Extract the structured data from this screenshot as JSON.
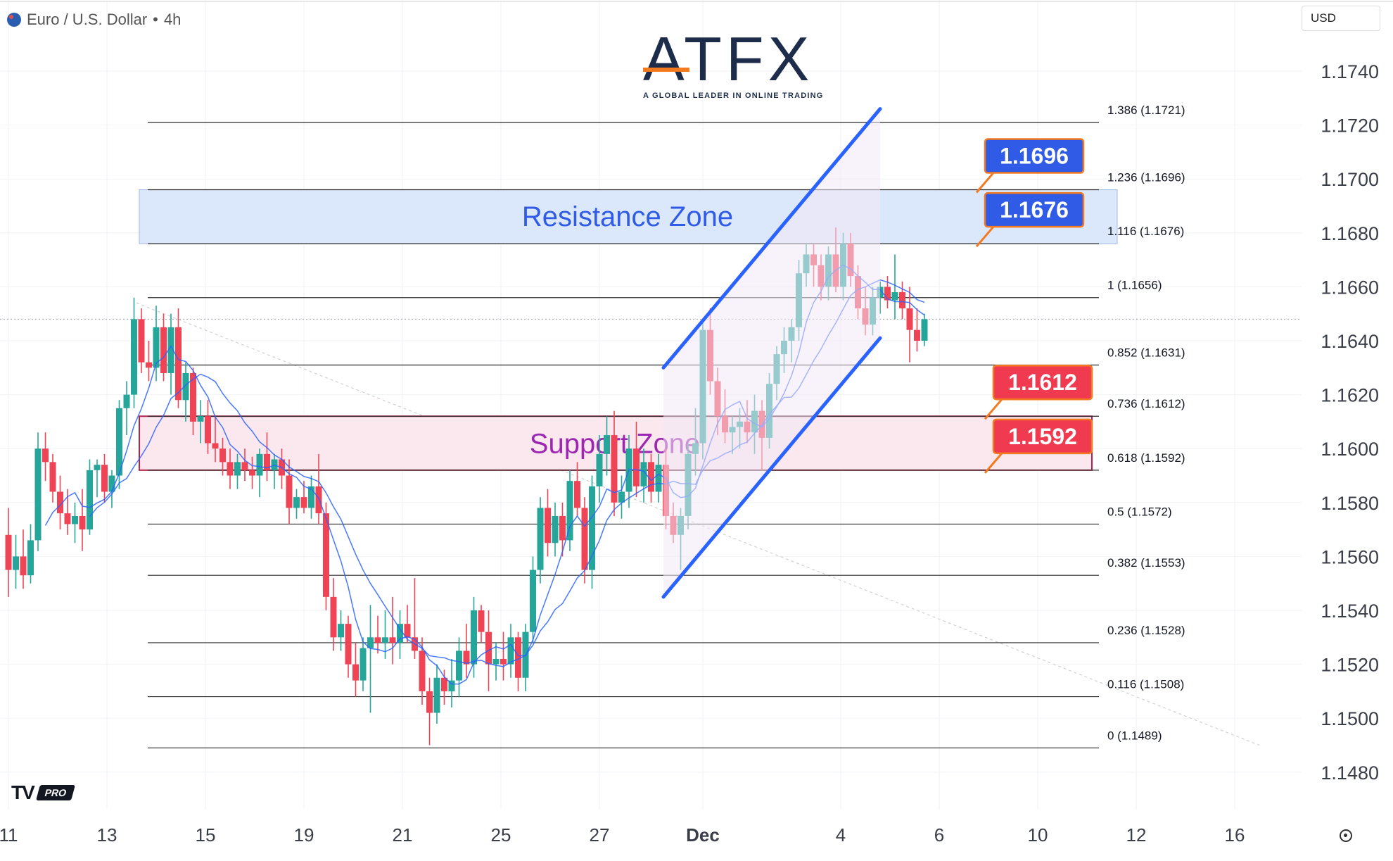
{
  "header": {
    "title": "Euro / U.S. Dollar",
    "interval": "4h",
    "currency": "USD"
  },
  "logo": {
    "name": "ATFX",
    "tagline": "A GLOBAL LEADER IN ONLINE TRADING"
  },
  "watermark": {
    "name": "TV",
    "badge": "PRO"
  },
  "colors": {
    "up": "#26a69a",
    "down": "#ef4455",
    "channel": "#2962ff",
    "resistance_fill": "#dbe8fb",
    "support_fill": "#fbe8ee",
    "resistance_label": "#2f5be6",
    "support_label": "#ef3a50",
    "support_text": "#9c27b0",
    "resistance_text": "#2f5be6"
  },
  "chart_data": {
    "type": "candlestick",
    "title": "",
    "ylim": [
      1.1472,
      1.1758
    ],
    "x_ticks": [
      {
        "label": "11",
        "day": 11
      },
      {
        "label": "13",
        "day": 13
      },
      {
        "label": "15",
        "day": 15
      },
      {
        "label": "19",
        "day": 17
      },
      {
        "label": "21",
        "day": 19
      },
      {
        "label": "25",
        "day": 21
      },
      {
        "label": "27",
        "day": 23
      },
      {
        "label": "Dec",
        "day": 25.1
      },
      {
        "label": "4",
        "day": 27.9
      },
      {
        "label": "6",
        "day": 29.9
      },
      {
        "label": "10",
        "day": 31.9
      },
      {
        "label": "12",
        "day": 33.9
      },
      {
        "label": "16",
        "day": 35.9
      }
    ],
    "y_ticks": [
      "1.1740",
      "1.1720",
      "1.1700",
      "1.1680",
      "1.1660",
      "1.1640",
      "1.1620",
      "1.1600",
      "1.1580",
      "1.1560",
      "1.1540",
      "1.1520",
      "1.1500",
      "1.1480"
    ],
    "fib_levels": [
      {
        "label": "1.386 (1.1721)",
        "price": 1.1721
      },
      {
        "label": "1.236 (1.1696)",
        "price": 1.1696
      },
      {
        "label": "1.116 (1.1676)",
        "price": 1.1676
      },
      {
        "label": "1 (1.1656)",
        "price": 1.1656
      },
      {
        "label": "0.852 (1.1631)",
        "price": 1.1631
      },
      {
        "label": "0.736 (1.1612)",
        "price": 1.1612
      },
      {
        "label": "0.618 (1.1592)",
        "price": 1.1592
      },
      {
        "label": "0.5 (1.1572)",
        "price": 1.1572
      },
      {
        "label": "0.382 (1.1553)",
        "price": 1.1553
      },
      {
        "label": "0.236 (1.1528)",
        "price": 1.1528
      },
      {
        "label": "0.116 (1.1508)",
        "price": 1.1508
      },
      {
        "label": "0 (1.1489)",
        "price": 1.1489
      }
    ],
    "zones": [
      {
        "name": "Resistance Zone",
        "top": 1.1696,
        "bottom": 1.1676,
        "kind": "resistance"
      },
      {
        "name": "Support Zone",
        "top": 1.1612,
        "bottom": 1.1592,
        "kind": "support"
      }
    ],
    "callouts": [
      {
        "text": "1.1696",
        "price": 1.1696,
        "kind": "resistance"
      },
      {
        "text": "1.1676",
        "price": 1.1676,
        "kind": "resistance"
      },
      {
        "text": "1.1612",
        "price": 1.1612,
        "kind": "support"
      },
      {
        "text": "1.1592",
        "price": 1.1592,
        "kind": "support"
      }
    ],
    "channel": {
      "upper": [
        {
          "day": 24.3,
          "price": 1.163
        },
        {
          "day": 28.7,
          "price": 1.1726
        }
      ],
      "lower": [
        {
          "day": 24.3,
          "price": 1.1545
        },
        {
          "day": 28.7,
          "price": 1.1641
        }
      ]
    },
    "candles": [
      {
        "day": 11.0,
        "o": 1.1568,
        "h": 1.1578,
        "l": 1.1545,
        "c": 1.1555
      },
      {
        "day": 11.15,
        "o": 1.1555,
        "h": 1.1568,
        "l": 1.1548,
        "c": 1.156
      },
      {
        "day": 11.3,
        "o": 1.156,
        "h": 1.157,
        "l": 1.1548,
        "c": 1.1553
      },
      {
        "day": 11.45,
        "o": 1.1553,
        "h": 1.1572,
        "l": 1.155,
        "c": 1.1566
      },
      {
        "day": 11.6,
        "o": 1.1566,
        "h": 1.1606,
        "l": 1.1562,
        "c": 1.16
      },
      {
        "day": 11.75,
        "o": 1.16,
        "h": 1.1606,
        "l": 1.1588,
        "c": 1.1595
      },
      {
        "day": 11.9,
        "o": 1.1595,
        "h": 1.1598,
        "l": 1.158,
        "c": 1.1584
      },
      {
        "day": 12.05,
        "o": 1.1584,
        "h": 1.159,
        "l": 1.157,
        "c": 1.1576
      },
      {
        "day": 12.2,
        "o": 1.1576,
        "h": 1.1585,
        "l": 1.1568,
        "c": 1.1572
      },
      {
        "day": 12.35,
        "o": 1.1572,
        "h": 1.158,
        "l": 1.1565,
        "c": 1.1575
      },
      {
        "day": 12.5,
        "o": 1.1575,
        "h": 1.1585,
        "l": 1.1562,
        "c": 1.157
      },
      {
        "day": 12.65,
        "o": 1.157,
        "h": 1.1596,
        "l": 1.1568,
        "c": 1.1592
      },
      {
        "day": 12.8,
        "o": 1.1592,
        "h": 1.1596,
        "l": 1.1582,
        "c": 1.1594
      },
      {
        "day": 12.95,
        "o": 1.1594,
        "h": 1.1598,
        "l": 1.158,
        "c": 1.1584
      },
      {
        "day": 13.1,
        "o": 1.1584,
        "h": 1.1592,
        "l": 1.1578,
        "c": 1.159
      },
      {
        "day": 13.25,
        "o": 1.159,
        "h": 1.1618,
        "l": 1.1585,
        "c": 1.1615
      },
      {
        "day": 13.4,
        "o": 1.1615,
        "h": 1.1625,
        "l": 1.1605,
        "c": 1.162
      },
      {
        "day": 13.55,
        "o": 1.162,
        "h": 1.1656,
        "l": 1.1615,
        "c": 1.1648
      },
      {
        "day": 13.7,
        "o": 1.1648,
        "h": 1.1652,
        "l": 1.1628,
        "c": 1.1632
      },
      {
        "day": 13.85,
        "o": 1.1632,
        "h": 1.164,
        "l": 1.1625,
        "c": 1.163
      },
      {
        "day": 14.0,
        "o": 1.163,
        "h": 1.1653,
        "l": 1.1625,
        "c": 1.1645
      },
      {
        "day": 14.15,
        "o": 1.1645,
        "h": 1.165,
        "l": 1.1625,
        "c": 1.1628
      },
      {
        "day": 14.3,
        "o": 1.1628,
        "h": 1.165,
        "l": 1.162,
        "c": 1.1645
      },
      {
        "day": 14.45,
        "o": 1.1645,
        "h": 1.1652,
        "l": 1.1615,
        "c": 1.1618
      },
      {
        "day": 14.6,
        "o": 1.1618,
        "h": 1.1632,
        "l": 1.161,
        "c": 1.1628
      },
      {
        "day": 14.75,
        "o": 1.1628,
        "h": 1.163,
        "l": 1.1605,
        "c": 1.161
      },
      {
        "day": 14.9,
        "o": 1.161,
        "h": 1.1618,
        "l": 1.1602,
        "c": 1.1612
      },
      {
        "day": 15.05,
        "o": 1.1612,
        "h": 1.1618,
        "l": 1.1598,
        "c": 1.1602
      },
      {
        "day": 15.2,
        "o": 1.1602,
        "h": 1.1612,
        "l": 1.1595,
        "c": 1.16
      },
      {
        "day": 15.35,
        "o": 1.16,
        "h": 1.1604,
        "l": 1.159,
        "c": 1.1595
      },
      {
        "day": 15.5,
        "o": 1.1595,
        "h": 1.16,
        "l": 1.1585,
        "c": 1.159
      },
      {
        "day": 15.65,
        "o": 1.159,
        "h": 1.1598,
        "l": 1.1585,
        "c": 1.1595
      },
      {
        "day": 15.8,
        "o": 1.1595,
        "h": 1.16,
        "l": 1.1588,
        "c": 1.1592
      },
      {
        "day": 15.95,
        "o": 1.1592,
        "h": 1.1597,
        "l": 1.1585,
        "c": 1.159
      },
      {
        "day": 16.1,
        "o": 1.159,
        "h": 1.16,
        "l": 1.1582,
        "c": 1.1598
      },
      {
        "day": 16.25,
        "o": 1.1598,
        "h": 1.1606,
        "l": 1.1588,
        "c": 1.1592
      },
      {
        "day": 16.4,
        "o": 1.1592,
        "h": 1.1598,
        "l": 1.1585,
        "c": 1.1596
      },
      {
        "day": 16.55,
        "o": 1.1596,
        "h": 1.16,
        "l": 1.1585,
        "c": 1.159
      },
      {
        "day": 16.7,
        "o": 1.159,
        "h": 1.1596,
        "l": 1.1572,
        "c": 1.1578
      },
      {
        "day": 16.85,
        "o": 1.1578,
        "h": 1.1585,
        "l": 1.1574,
        "c": 1.1582
      },
      {
        "day": 17.0,
        "o": 1.1582,
        "h": 1.1588,
        "l": 1.1576,
        "c": 1.1578
      },
      {
        "day": 17.15,
        "o": 1.1578,
        "h": 1.159,
        "l": 1.1574,
        "c": 1.1586
      },
      {
        "day": 17.3,
        "o": 1.1586,
        "h": 1.1598,
        "l": 1.1572,
        "c": 1.1576
      },
      {
        "day": 17.45,
        "o": 1.1576,
        "h": 1.158,
        "l": 1.154,
        "c": 1.1545
      },
      {
        "day": 17.6,
        "o": 1.1545,
        "h": 1.1552,
        "l": 1.1525,
        "c": 1.153
      },
      {
        "day": 17.75,
        "o": 1.153,
        "h": 1.154,
        "l": 1.1525,
        "c": 1.1535
      },
      {
        "day": 17.9,
        "o": 1.1535,
        "h": 1.1538,
        "l": 1.1515,
        "c": 1.152
      },
      {
        "day": 18.05,
        "o": 1.152,
        "h": 1.1528,
        "l": 1.1508,
        "c": 1.1514
      },
      {
        "day": 18.2,
        "o": 1.1514,
        "h": 1.153,
        "l": 1.151,
        "c": 1.1526
      },
      {
        "day": 18.35,
        "o": 1.1526,
        "h": 1.1542,
        "l": 1.1502,
        "c": 1.153
      },
      {
        "day": 18.5,
        "o": 1.153,
        "h": 1.1538,
        "l": 1.1524,
        "c": 1.1528
      },
      {
        "day": 18.65,
        "o": 1.1528,
        "h": 1.154,
        "l": 1.1522,
        "c": 1.153
      },
      {
        "day": 18.8,
        "o": 1.153,
        "h": 1.1545,
        "l": 1.152,
        "c": 1.1528
      },
      {
        "day": 18.95,
        "o": 1.1528,
        "h": 1.154,
        "l": 1.1522,
        "c": 1.1535
      },
      {
        "day": 19.1,
        "o": 1.1535,
        "h": 1.1542,
        "l": 1.1528,
        "c": 1.153
      },
      {
        "day": 19.25,
        "o": 1.153,
        "h": 1.1552,
        "l": 1.1522,
        "c": 1.1525
      },
      {
        "day": 19.4,
        "o": 1.1525,
        "h": 1.153,
        "l": 1.1505,
        "c": 1.151
      },
      {
        "day": 19.55,
        "o": 1.151,
        "h": 1.1515,
        "l": 1.149,
        "c": 1.1502
      },
      {
        "day": 19.7,
        "o": 1.1502,
        "h": 1.152,
        "l": 1.1498,
        "c": 1.1515
      },
      {
        "day": 19.85,
        "o": 1.1515,
        "h": 1.1518,
        "l": 1.1505,
        "c": 1.151
      },
      {
        "day": 20.0,
        "o": 1.151,
        "h": 1.1522,
        "l": 1.1504,
        "c": 1.1514
      },
      {
        "day": 20.15,
        "o": 1.1514,
        "h": 1.153,
        "l": 1.1508,
        "c": 1.1525
      },
      {
        "day": 20.3,
        "o": 1.1525,
        "h": 1.1535,
        "l": 1.1515,
        "c": 1.152
      },
      {
        "day": 20.45,
        "o": 1.152,
        "h": 1.1545,
        "l": 1.1515,
        "c": 1.154
      },
      {
        "day": 20.6,
        "o": 1.154,
        "h": 1.1542,
        "l": 1.1528,
        "c": 1.1532
      },
      {
        "day": 20.75,
        "o": 1.1532,
        "h": 1.154,
        "l": 1.151,
        "c": 1.152
      },
      {
        "day": 20.9,
        "o": 1.152,
        "h": 1.1528,
        "l": 1.1514,
        "c": 1.1522
      },
      {
        "day": 21.05,
        "o": 1.1522,
        "h": 1.1532,
        "l": 1.1514,
        "c": 1.152
      },
      {
        "day": 21.2,
        "o": 1.152,
        "h": 1.1535,
        "l": 1.1515,
        "c": 1.153
      },
      {
        "day": 21.35,
        "o": 1.153,
        "h": 1.1532,
        "l": 1.151,
        "c": 1.1515
      },
      {
        "day": 21.5,
        "o": 1.1515,
        "h": 1.1535,
        "l": 1.151,
        "c": 1.1532
      },
      {
        "day": 21.65,
        "o": 1.1532,
        "h": 1.156,
        "l": 1.1528,
        "c": 1.1555
      },
      {
        "day": 21.8,
        "o": 1.1555,
        "h": 1.1582,
        "l": 1.155,
        "c": 1.1578
      },
      {
        "day": 21.95,
        "o": 1.1578,
        "h": 1.1585,
        "l": 1.156,
        "c": 1.1565
      },
      {
        "day": 22.1,
        "o": 1.1565,
        "h": 1.158,
        "l": 1.156,
        "c": 1.1575
      },
      {
        "day": 22.25,
        "o": 1.1575,
        "h": 1.158,
        "l": 1.156,
        "c": 1.1566
      },
      {
        "day": 22.4,
        "o": 1.1566,
        "h": 1.1592,
        "l": 1.1562,
        "c": 1.1588
      },
      {
        "day": 22.55,
        "o": 1.1588,
        "h": 1.1595,
        "l": 1.1575,
        "c": 1.1578
      },
      {
        "day": 22.7,
        "o": 1.1578,
        "h": 1.1582,
        "l": 1.155,
        "c": 1.1555
      },
      {
        "day": 22.85,
        "o": 1.1555,
        "h": 1.159,
        "l": 1.1548,
        "c": 1.1586
      },
      {
        "day": 23.0,
        "o": 1.1586,
        "h": 1.1605,
        "l": 1.158,
        "c": 1.1598
      },
      {
        "day": 23.15,
        "o": 1.1598,
        "h": 1.1612,
        "l": 1.159,
        "c": 1.1605
      },
      {
        "day": 23.3,
        "o": 1.1605,
        "h": 1.1614,
        "l": 1.1575,
        "c": 1.158
      },
      {
        "day": 23.45,
        "o": 1.158,
        "h": 1.159,
        "l": 1.1574,
        "c": 1.1584
      },
      {
        "day": 23.6,
        "o": 1.1584,
        "h": 1.1605,
        "l": 1.1578,
        "c": 1.16
      },
      {
        "day": 23.75,
        "o": 1.16,
        "h": 1.161,
        "l": 1.1582,
        "c": 1.1586
      },
      {
        "day": 23.9,
        "o": 1.1586,
        "h": 1.16,
        "l": 1.158,
        "c": 1.1595
      },
      {
        "day": 24.05,
        "o": 1.1595,
        "h": 1.1598,
        "l": 1.158,
        "c": 1.1584
      },
      {
        "day": 24.2,
        "o": 1.1584,
        "h": 1.1598,
        "l": 1.158,
        "c": 1.1594
      },
      {
        "day": 24.35,
        "o": 1.1594,
        "h": 1.16,
        "l": 1.157,
        "c": 1.1575
      },
      {
        "day": 24.5,
        "o": 1.1575,
        "h": 1.158,
        "l": 1.1565,
        "c": 1.1568
      },
      {
        "day": 24.65,
        "o": 1.1568,
        "h": 1.1578,
        "l": 1.1555,
        "c": 1.1575
      },
      {
        "day": 24.8,
        "o": 1.1575,
        "h": 1.1602,
        "l": 1.157,
        "c": 1.1598
      },
      {
        "day": 24.95,
        "o": 1.1598,
        "h": 1.1615,
        "l": 1.159,
        "c": 1.1602
      },
      {
        "day": 25.1,
        "o": 1.1602,
        "h": 1.1648,
        "l": 1.1596,
        "c": 1.1644
      },
      {
        "day": 25.25,
        "o": 1.1644,
        "h": 1.1652,
        "l": 1.162,
        "c": 1.1625
      },
      {
        "day": 25.4,
        "o": 1.1625,
        "h": 1.163,
        "l": 1.1605,
        "c": 1.1612
      },
      {
        "day": 25.55,
        "o": 1.1612,
        "h": 1.1622,
        "l": 1.1602,
        "c": 1.1606
      },
      {
        "day": 25.7,
        "o": 1.1606,
        "h": 1.1612,
        "l": 1.1598,
        "c": 1.1608
      },
      {
        "day": 25.85,
        "o": 1.1608,
        "h": 1.1615,
        "l": 1.16,
        "c": 1.161
      },
      {
        "day": 26.0,
        "o": 1.161,
        "h": 1.1618,
        "l": 1.1602,
        "c": 1.1606
      },
      {
        "day": 26.15,
        "o": 1.1606,
        "h": 1.162,
        "l": 1.1598,
        "c": 1.1614
      },
      {
        "day": 26.3,
        "o": 1.1614,
        "h": 1.1618,
        "l": 1.1592,
        "c": 1.1604
      },
      {
        "day": 26.45,
        "o": 1.1604,
        "h": 1.1628,
        "l": 1.16,
        "c": 1.1624
      },
      {
        "day": 26.6,
        "o": 1.1624,
        "h": 1.1638,
        "l": 1.1618,
        "c": 1.1635
      },
      {
        "day": 26.75,
        "o": 1.1635,
        "h": 1.1645,
        "l": 1.1628,
        "c": 1.164
      },
      {
        "day": 26.9,
        "o": 1.164,
        "h": 1.1648,
        "l": 1.1632,
        "c": 1.1645
      },
      {
        "day": 27.05,
        "o": 1.1645,
        "h": 1.167,
        "l": 1.164,
        "c": 1.1665
      },
      {
        "day": 27.2,
        "o": 1.1665,
        "h": 1.1676,
        "l": 1.166,
        "c": 1.1672
      },
      {
        "day": 27.35,
        "o": 1.1672,
        "h": 1.1676,
        "l": 1.166,
        "c": 1.1668
      },
      {
        "day": 27.5,
        "o": 1.1668,
        "h": 1.1672,
        "l": 1.1655,
        "c": 1.166
      },
      {
        "day": 27.65,
        "o": 1.166,
        "h": 1.1675,
        "l": 1.1655,
        "c": 1.1672
      },
      {
        "day": 27.8,
        "o": 1.1672,
        "h": 1.1682,
        "l": 1.1658,
        "c": 1.166
      },
      {
        "day": 27.95,
        "o": 1.166,
        "h": 1.168,
        "l": 1.1655,
        "c": 1.1676
      },
      {
        "day": 28.1,
        "o": 1.1676,
        "h": 1.168,
        "l": 1.166,
        "c": 1.1664
      },
      {
        "day": 28.25,
        "o": 1.1664,
        "h": 1.1668,
        "l": 1.1648,
        "c": 1.1652
      },
      {
        "day": 28.4,
        "o": 1.1652,
        "h": 1.166,
        "l": 1.1642,
        "c": 1.1646
      },
      {
        "day": 28.55,
        "o": 1.1646,
        "h": 1.166,
        "l": 1.1642,
        "c": 1.1656
      },
      {
        "day": 28.7,
        "o": 1.1656,
        "h": 1.1662,
        "l": 1.165,
        "c": 1.166
      },
      {
        "day": 28.85,
        "o": 1.166,
        "h": 1.1664,
        "l": 1.1652,
        "c": 1.1655
      },
      {
        "day": 29.0,
        "o": 1.1655,
        "h": 1.1672,
        "l": 1.1648,
        "c": 1.1658
      },
      {
        "day": 29.15,
        "o": 1.1658,
        "h": 1.1662,
        "l": 1.1648,
        "c": 1.1652
      },
      {
        "day": 29.3,
        "o": 1.1652,
        "h": 1.166,
        "l": 1.1632,
        "c": 1.1644
      },
      {
        "day": 29.45,
        "o": 1.1644,
        "h": 1.1652,
        "l": 1.1636,
        "c": 1.164
      },
      {
        "day": 29.6,
        "o": 1.164,
        "h": 1.165,
        "l": 1.1638,
        "c": 1.1648
      }
    ]
  }
}
